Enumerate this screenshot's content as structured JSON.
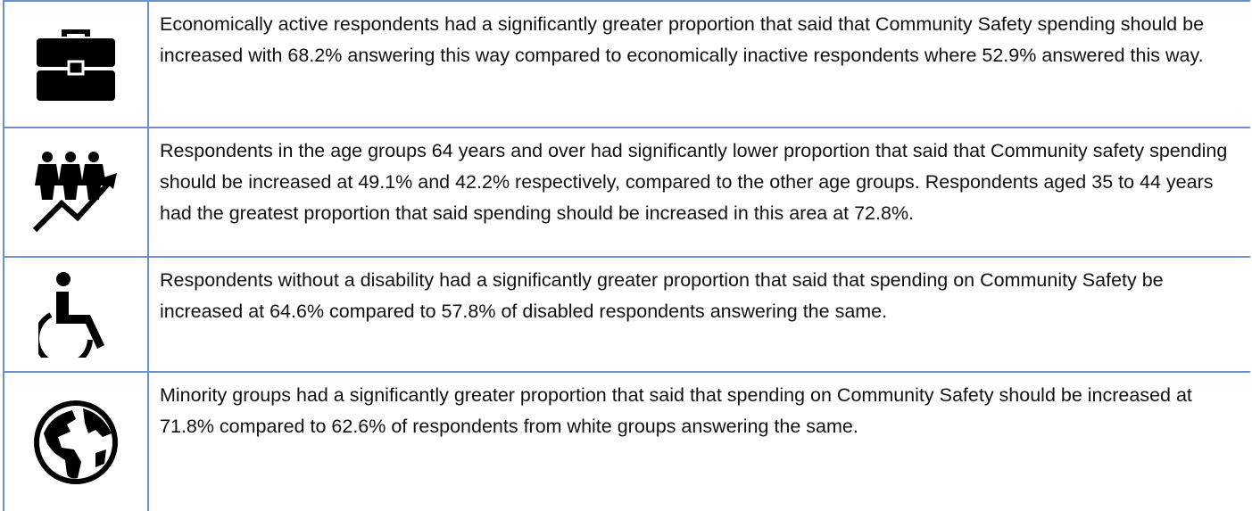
{
  "rows": [
    {
      "text": "Economically active respondents had a significantly greater proportion that said that Community Safety spending should be increased with 68.2% answering this way compared to economically inactive respondents where 52.9% answered this way."
    },
    {
      "text": "Respondents in the age groups 64 years and over had significantly lower proportion that said that Community safety spending should be increased at 49.1% and 42.2% respectively, compared to the other age groups. Respondents aged 35 to 44 years had the greatest proportion that said spending should be increased in this area at 72.8%."
    },
    {
      "text": "Respondents without a disability had a significantly greater proportion that said that spending on Community Safety be increased at 64.6% compared to 57.8% of disabled respondents answering the same."
    },
    {
      "text": "Minority groups had a significantly greater proportion that said that spending on Community Safety should be increased at 71.8% compared to 62.6% of respondents from white groups answering the same."
    }
  ]
}
